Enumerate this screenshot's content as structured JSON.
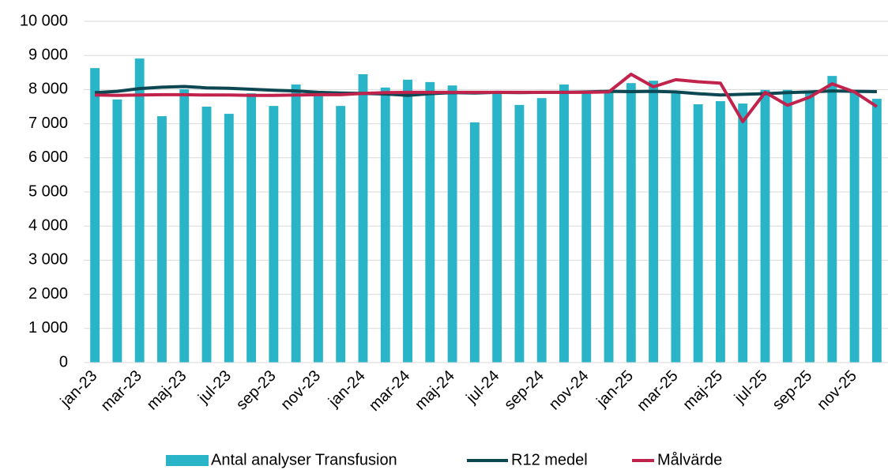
{
  "chart_data": {
    "type": "bar_line",
    "categories": [
      "jan-23",
      null,
      "mar-23",
      null,
      "maj-23",
      null,
      "jul-23",
      null,
      "sep-23",
      null,
      "nov-23",
      null,
      "jan-24",
      null,
      "mar-24",
      null,
      "maj-24",
      null,
      "jul-24",
      null,
      "sep-24",
      null,
      "nov-24",
      null,
      "jan-25",
      null,
      "mar-25",
      null,
      "maj-25",
      null,
      "jul-25",
      null,
      "sep-25",
      null,
      "nov-25",
      null
    ],
    "series": [
      {
        "name": "Antal analyser Transfusion",
        "type": "bar",
        "color": "#29b4c7",
        "values": [
          8630,
          7710,
          8910,
          7220,
          8010,
          7500,
          7290,
          7890,
          7520,
          8150,
          7890,
          7520,
          8450,
          8060,
          8290,
          8220,
          8120,
          7040,
          7940,
          7550,
          7750,
          8150,
          7960,
          7960,
          8190,
          8260,
          7890,
          7570,
          7660,
          7590,
          7990,
          7990,
          7940,
          8400,
          7940,
          7730
        ]
      },
      {
        "name": "R12 medel",
        "type": "line",
        "color": "#0d4752",
        "values": [
          7910,
          7950,
          8030,
          8070,
          8090,
          8050,
          8040,
          8010,
          7980,
          7960,
          7920,
          7900,
          7890,
          7870,
          7830,
          7880,
          7910,
          7900,
          7920,
          7910,
          7920,
          7920,
          7930,
          7950,
          7940,
          7950,
          7930,
          7880,
          7840,
          7860,
          7880,
          7910,
          7930,
          7960,
          7950,
          7940
        ]
      },
      {
        "name": "Målvärde",
        "type": "line",
        "color": "#c1234d",
        "values": [
          7840,
          7830,
          7840,
          7850,
          7850,
          7840,
          7840,
          7830,
          7830,
          7840,
          7850,
          7850,
          7890,
          7910,
          7920,
          7920,
          7920,
          7920,
          7920,
          7920,
          7920,
          7920,
          7920,
          7930,
          8450,
          8080,
          8290,
          8230,
          8190,
          7060,
          7920,
          7540,
          7780,
          8170,
          7930,
          7500
        ]
      }
    ],
    "ylim": [
      0,
      10000
    ],
    "yticks": [
      0,
      {
        "value": 1000,
        "label": "1 000"
      },
      {
        "value": 2000,
        "label": "2 000"
      },
      {
        "value": 3000,
        "label": "3 000"
      },
      {
        "value": 4000,
        "label": "4 000"
      },
      {
        "value": 5000,
        "label": "5 000"
      },
      {
        "value": 6000,
        "label": "6 000"
      },
      {
        "value": 7000,
        "label": "7 000"
      },
      {
        "value": 8000,
        "label": "8 000"
      },
      {
        "value": 9000,
        "label": "9 000"
      },
      {
        "value": 10000,
        "label": "10 000"
      }
    ],
    "grid": true,
    "legend": "bottom"
  }
}
